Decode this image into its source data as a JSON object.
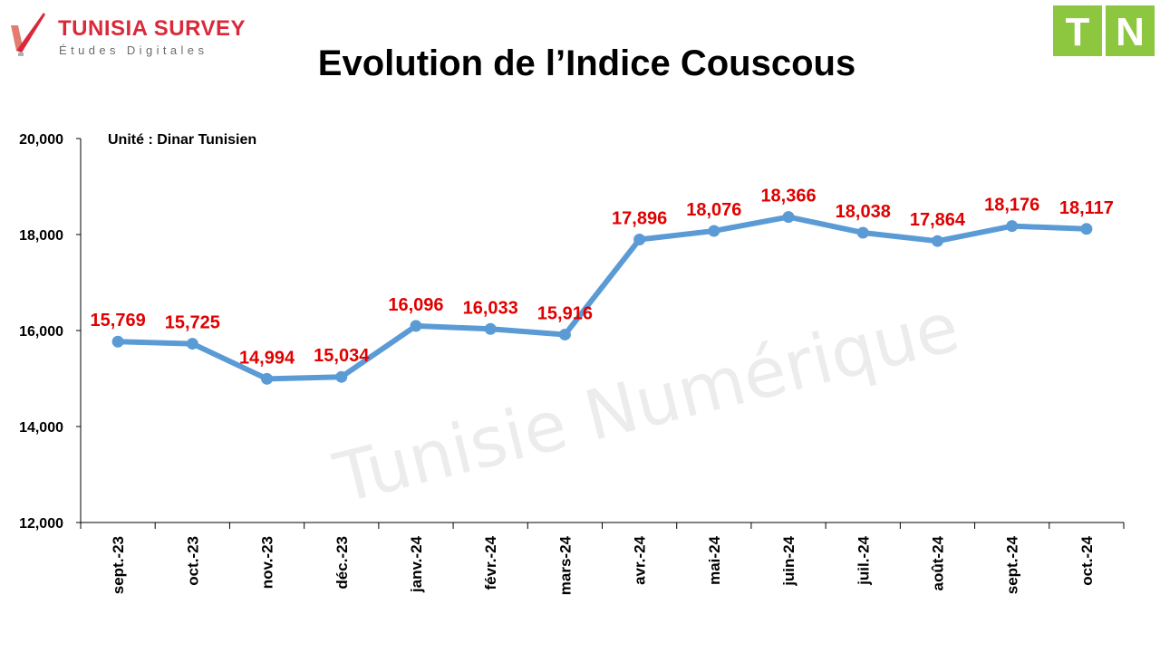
{
  "header": {
    "brand_name": "TUNISIA SURVEY",
    "brand_tagline": "Études Digitales",
    "partner_logo": [
      "T",
      "N"
    ],
    "brand_color": "#d9293a",
    "partner_color": "#8dc63f"
  },
  "watermark": "Tunisie Numérique",
  "chart_data": {
    "type": "line",
    "title": "Evolution de l’Indice Couscous",
    "unit_note": "Unité : Dinar Tunisien",
    "categories": [
      "sept.-23",
      "oct.-23",
      "nov.-23",
      "déc.-23",
      "janv.-24",
      "févr.-24",
      "mars-24",
      "avr.-24",
      "mai-24",
      "juin-24",
      "juil.-24",
      "août-24",
      "sept.-24",
      "oct.-24"
    ],
    "series": [
      {
        "values": [
          15.769,
          15.725,
          14.994,
          15.034,
          16.096,
          16.033,
          15.916,
          17.896,
          18.076,
          18.366,
          18.038,
          17.864,
          18.176,
          18.117
        ],
        "labels": [
          "15,769",
          "15,725",
          "14,994",
          "15,034",
          "16,096",
          "16,033",
          "15,916",
          "17,896",
          "18,076",
          "18,366",
          "18,038",
          "17,864",
          "18,176",
          "18,117"
        ],
        "color": "#5b9bd5"
      }
    ],
    "ylim": [
      12,
      20
    ],
    "yticks": [
      12,
      14,
      16,
      18,
      20
    ],
    "ytick_labels": [
      "12,000",
      "14,000",
      "16,000",
      "18,000",
      "20,000"
    ],
    "label_color": "#e00000",
    "grid": false,
    "legend": "none"
  }
}
